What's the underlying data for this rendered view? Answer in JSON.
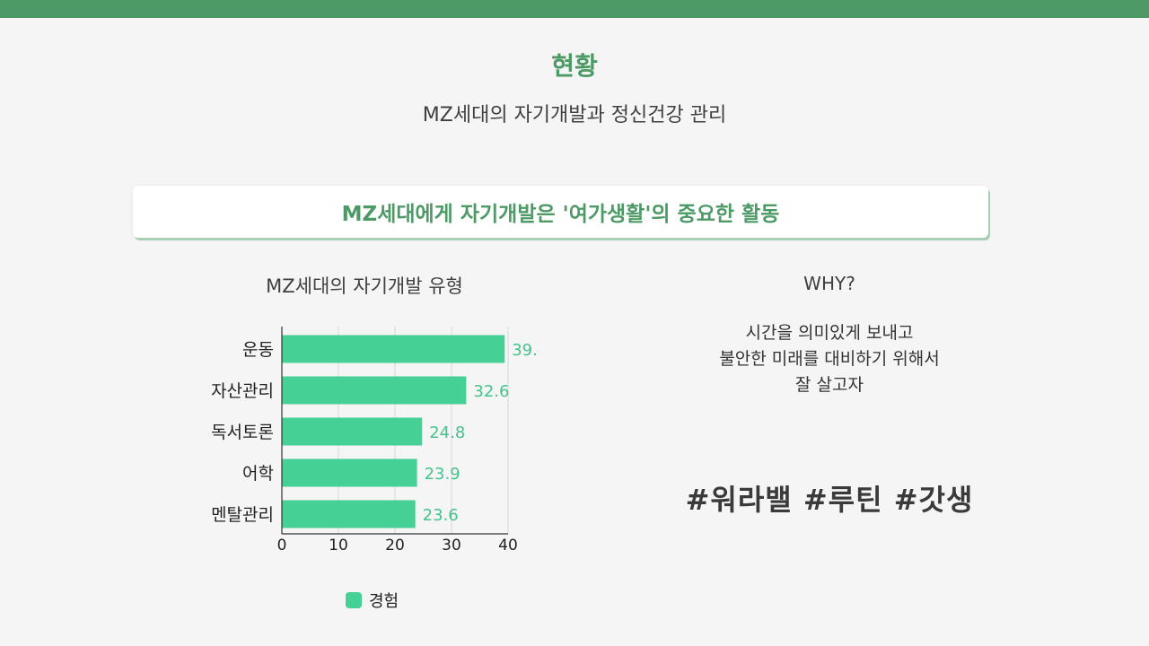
{
  "header": {
    "title": "현황",
    "subtitle": "MZ세대의 자기개발과 정신건강 관리"
  },
  "banner": {
    "text": "MZ세대에게 자기개발은 '여가생활'의 중요한 활동"
  },
  "why": {
    "title": "WHY?",
    "lines": [
      "시간을 의미있게 보내고",
      "불안한 미래를 대비하기 위해서",
      "잘 살고자"
    ],
    "hashtags": "#워라밸 #루틴 #갓생"
  },
  "colors": {
    "accent": "#4e9a66",
    "bar": "#45d096",
    "value_label": "#45c38d"
  },
  "chart_data": {
    "type": "bar",
    "orientation": "horizontal",
    "title": "MZ세대의 자기개발 유형",
    "categories": [
      "운동",
      "자산관리",
      "독서토론",
      "어학",
      "멘탈관리"
    ],
    "series": [
      {
        "name": "경험",
        "values": [
          39.4,
          32.6,
          24.8,
          23.9,
          23.6
        ]
      }
    ],
    "xlim": [
      0,
      40
    ],
    "xticks": [
      0,
      10,
      20,
      30,
      40
    ],
    "grid": true,
    "legend": "bottom"
  }
}
